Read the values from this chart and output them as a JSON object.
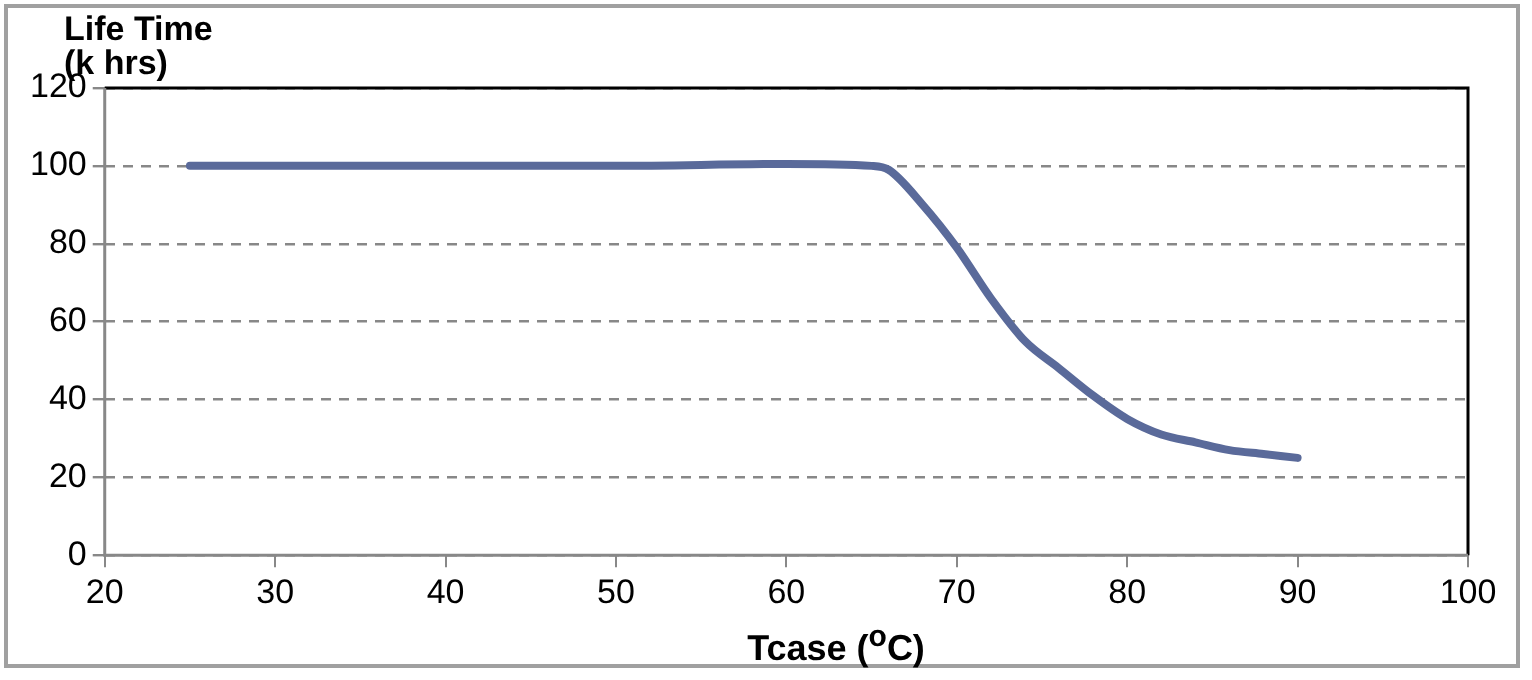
{
  "chart_data": {
    "type": "line",
    "xlabel": "Tcase ($^{o}$C)",
    "ylabel": "Life Time\n(k hrs)",
    "x": [
      25,
      50,
      60,
      65,
      66,
      68,
      70,
      72,
      74,
      76,
      78,
      80,
      82,
      84,
      86,
      88,
      90
    ],
    "series": [
      {
        "color": "#5a6a9a",
        "values": [
          100,
          100,
          100.5,
          100,
          99,
          90,
          79,
          66,
          55,
          48,
          41,
          35,
          31,
          29,
          27,
          26,
          25
        ]
      }
    ],
    "xlim": [
      20,
      100
    ],
    "xticks": [
      20,
      30,
      40,
      50,
      60,
      70,
      80,
      90,
      100
    ],
    "ylim": [
      0,
      120
    ],
    "yticks": [
      0,
      20,
      40,
      60,
      80,
      100,
      120
    ],
    "grid": "y",
    "legend": false,
    "marker": "none",
    "line_style": "solid"
  }
}
